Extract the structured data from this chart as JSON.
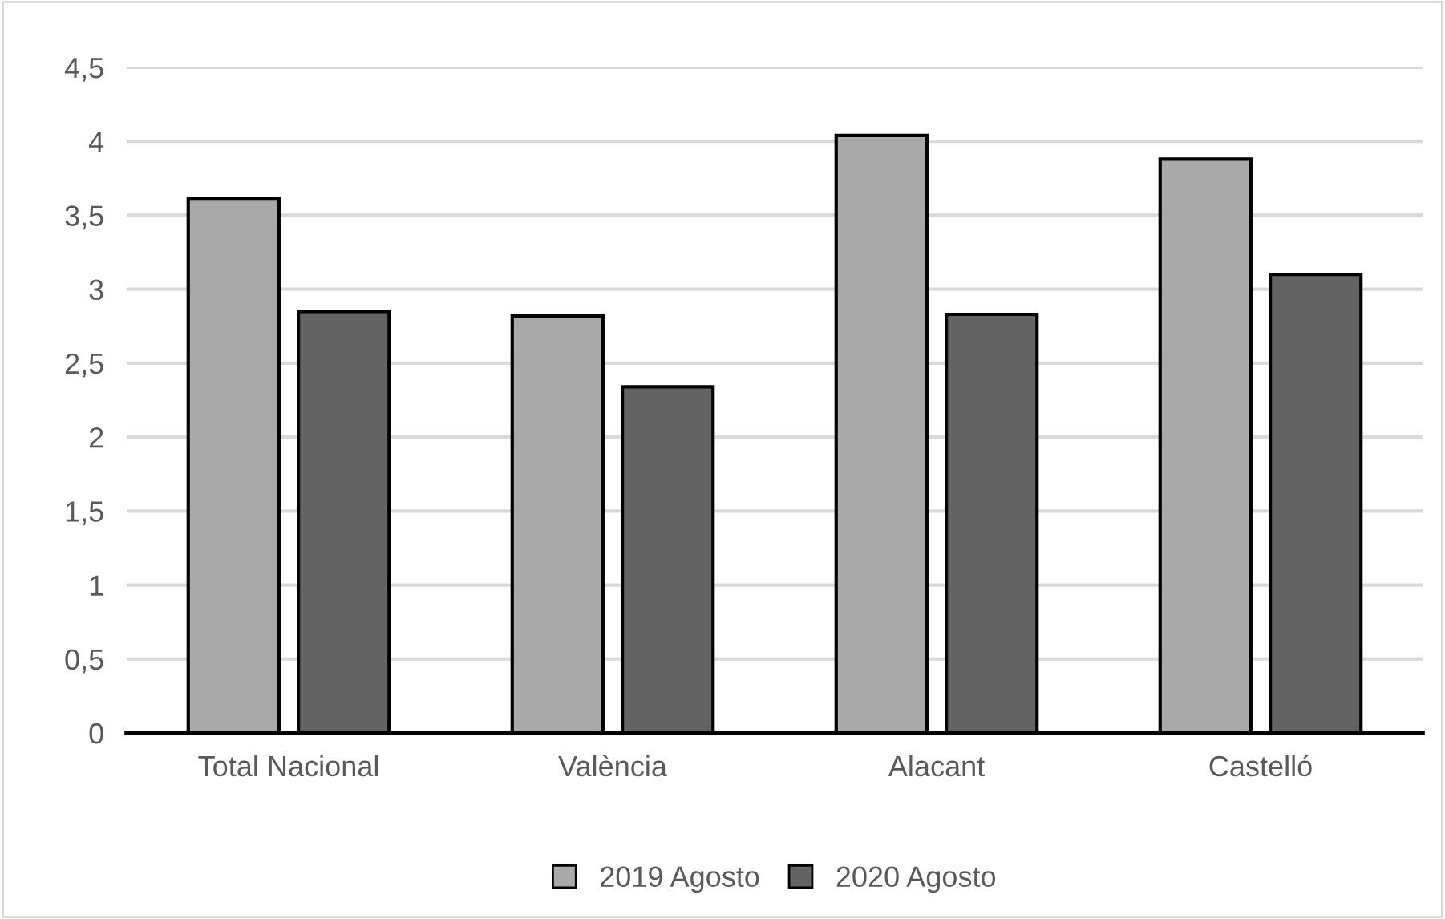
{
  "chart_data": {
    "type": "bar",
    "categories": [
      "Total Nacional",
      "València",
      "Alacant",
      "Castelló"
    ],
    "series": [
      {
        "name": "2019 Agosto",
        "color": "#a9a9a9",
        "values": [
          3.61,
          2.82,
          4.04,
          3.88
        ]
      },
      {
        "name": "2020 Agosto",
        "color": "#636363",
        "values": [
          2.85,
          2.34,
          2.83,
          3.1
        ]
      }
    ],
    "ylim": [
      0,
      4.5
    ],
    "yticks": [
      0,
      {
        "value": 0.5,
        "label": "0,5"
      },
      1,
      {
        "value": 1.5,
        "label": "1,5"
      },
      2,
      {
        "value": 2.5,
        "label": "2,5"
      },
      3,
      {
        "value": 3.5,
        "label": "3,5"
      },
      4,
      {
        "value": 4.5,
        "label": "4,5"
      }
    ],
    "grid": "y",
    "legend": "bottom"
  }
}
